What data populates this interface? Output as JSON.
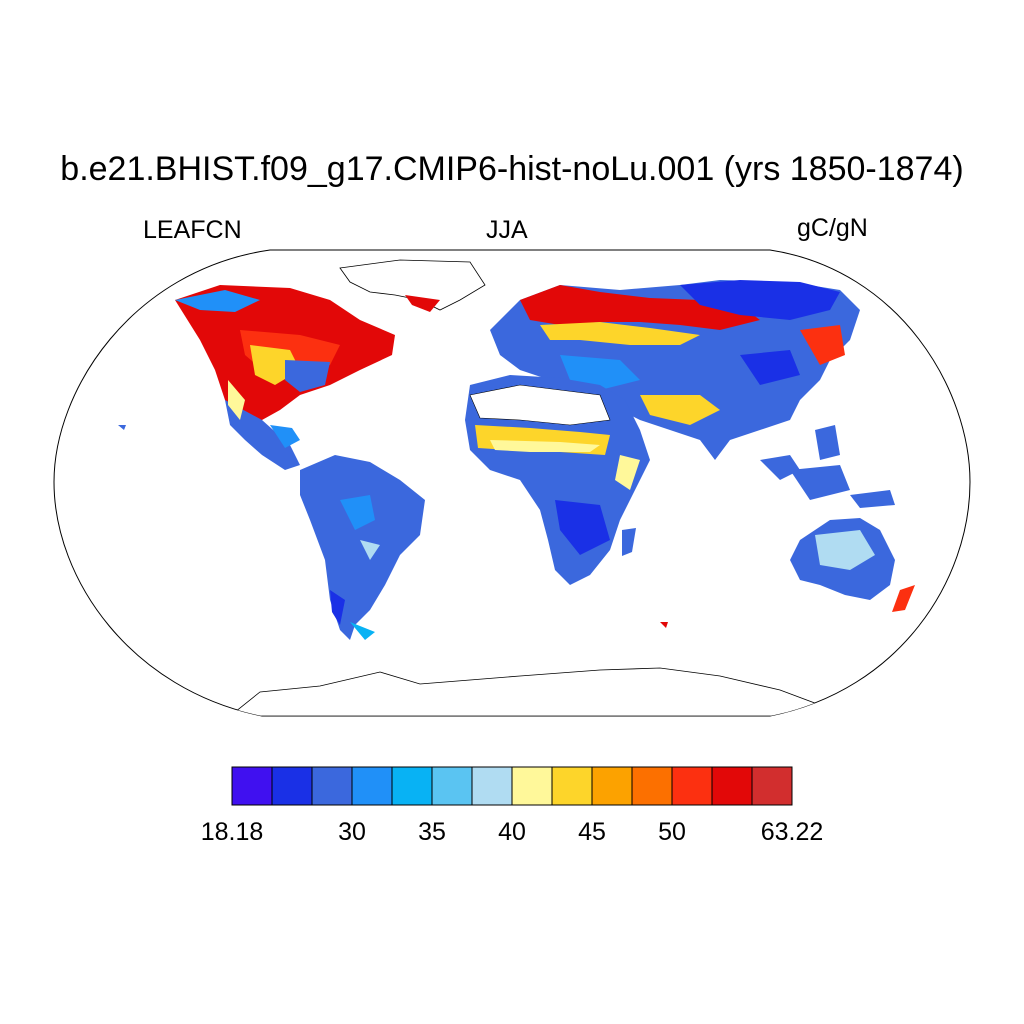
{
  "title": "b.e21.BHIST.f09_g17.CMIP6-hist-noLu.001 (yrs 1850-1874)",
  "left_label": "LEAFCN",
  "center_label": "JJA",
  "right_label": "gC/gN",
  "colorbar": {
    "colors": [
      "#4010f0",
      "#1a30e6",
      "#3b68dd",
      "#2090f8",
      "#08b2f4",
      "#5ac4f2",
      "#b0dcf2",
      "#fff89a",
      "#fdd52a",
      "#fca200",
      "#fc7000",
      "#fc3010",
      "#e20808",
      "#d22e2e"
    ],
    "tick_labels": [
      "18.18",
      "30",
      "35",
      "40",
      "45",
      "50",
      "63.22"
    ]
  }
}
